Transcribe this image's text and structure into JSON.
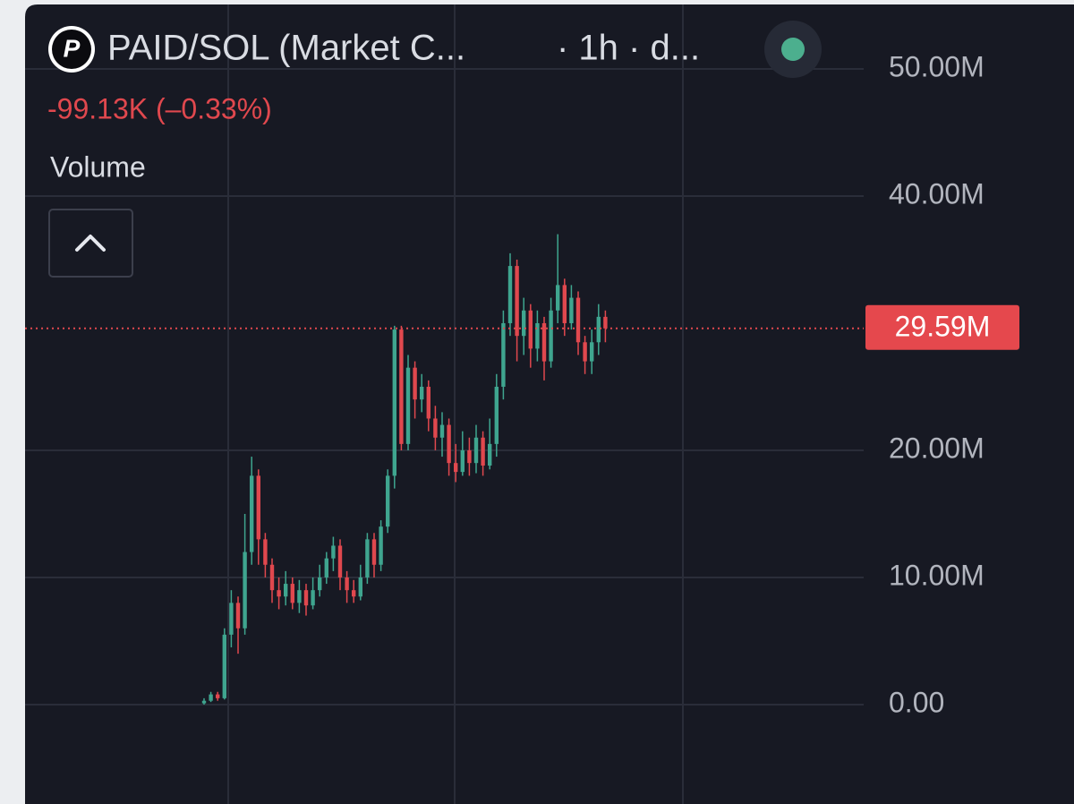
{
  "chart_data": {
    "type": "candlestick",
    "title": "PAID/SOL (Market C...",
    "interval": "· 1h · d...",
    "change": "-99.13K (–0.33%)",
    "indicator": "Volume",
    "last_price": {
      "value": 29590000,
      "label": "29.59M"
    },
    "up_color": "#3fa58f",
    "down_color": "#e0484e",
    "ylim": [
      -7820000,
      55070000
    ],
    "yticks": [
      {
        "value": 0,
        "label": "0.00"
      },
      {
        "value": 10000000,
        "label": "10.00M"
      },
      {
        "value": 20000000,
        "label": "20.00M"
      },
      {
        "value": 40000000,
        "label": "40.00M"
      },
      {
        "value": 50000000,
        "label": "50.00M"
      }
    ],
    "grid": true,
    "open": [
      100000,
      300000,
      800000,
      500000,
      5500000,
      8000000,
      6000000,
      12000000,
      18000000,
      13000000,
      11000000,
      9000000,
      8500000,
      9500000,
      8000000,
      9000000,
      7800000,
      9000000,
      10000000,
      11500000,
      12500000,
      10000000,
      9000000,
      8500000,
      10000000,
      13000000,
      11000000,
      14000000,
      18000000,
      29500000,
      20500000,
      26500000,
      24000000,
      25000000,
      22500000,
      21000000,
      22000000,
      19000000,
      18300000,
      20000000,
      19000000,
      21000000,
      18800000,
      20500000,
      25000000,
      30000000,
      34500000,
      29000000,
      31000000,
      28000000,
      30000000,
      27000000,
      31000000,
      33000000,
      30000000,
      32000000,
      28500000,
      27000000,
      28500000,
      30500000
    ],
    "high": [
      500000,
      1000000,
      1000000,
      6000000,
      9000000,
      8500000,
      15000000,
      19500000,
      18500000,
      13500000,
      11500000,
      10000000,
      10500000,
      10000000,
      9800000,
      9500000,
      10000000,
      11000000,
      12000000,
      13200000,
      13000000,
      10500000,
      9800000,
      11000000,
      13500000,
      13500000,
      14500000,
      18500000,
      29800000,
      29800000,
      27500000,
      27000000,
      26000000,
      25500000,
      23500000,
      23000000,
      22500000,
      20500000,
      21500000,
      21000000,
      22000000,
      21500000,
      22500000,
      26000000,
      31000000,
      35500000,
      35000000,
      32000000,
      31500000,
      31000000,
      30500000,
      32000000,
      37000000,
      33500000,
      33000000,
      32500000,
      29000000,
      29500000,
      31500000,
      31000000
    ],
    "low": [
      0,
      200000,
      300000,
      400000,
      4500000,
      4000000,
      5500000,
      11000000,
      11000000,
      10000000,
      8000000,
      7500000,
      7800000,
      7500000,
      7200000,
      7000000,
      7500000,
      8500000,
      9500000,
      10500000,
      9000000,
      8000000,
      8000000,
      8200000,
      9500000,
      10000000,
      10500000,
      13500000,
      17000000,
      20000000,
      20000000,
      22500000,
      23000000,
      21500000,
      20000000,
      19500000,
      18000000,
      17500000,
      18000000,
      18000000,
      18200000,
      18000000,
      18500000,
      19500000,
      24000000,
      29000000,
      27000000,
      27500000,
      26500000,
      27000000,
      25500000,
      26500000,
      30000000,
      29000000,
      29500000,
      27500000,
      26000000,
      26000000,
      27500000,
      28500000
    ],
    "close": [
      300000,
      800000,
      500000,
      5500000,
      8000000,
      6000000,
      12000000,
      18000000,
      13000000,
      11000000,
      9000000,
      8500000,
      9500000,
      8000000,
      9000000,
      7800000,
      9000000,
      10000000,
      11500000,
      12500000,
      10000000,
      9000000,
      8500000,
      10000000,
      13000000,
      11000000,
      14000000,
      18000000,
      29500000,
      20500000,
      26500000,
      24000000,
      25000000,
      22500000,
      21000000,
      22000000,
      19000000,
      18300000,
      20000000,
      19000000,
      21000000,
      18800000,
      20500000,
      25000000,
      30000000,
      34500000,
      29000000,
      31000000,
      28000000,
      30000000,
      27000000,
      31000000,
      33000000,
      30000000,
      32000000,
      28500000,
      27000000,
      28500000,
      30500000,
      29590000
    ]
  }
}
